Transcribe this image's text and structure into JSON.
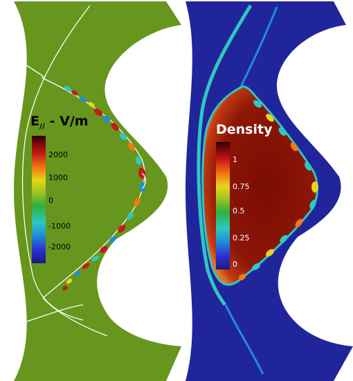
{
  "left_panel": {
    "title_main": "E",
    "title_sub": "//",
    "title_rest": " - V/m",
    "colorbar_ticks": [
      "2000",
      "1000",
      "0",
      "-1000",
      "-2000"
    ],
    "background_color": "#66961e"
  },
  "right_panel": {
    "title": "Density",
    "colorbar_ticks": [
      "1",
      "0.75",
      "0.5",
      "0.25",
      "0"
    ],
    "background_color": "#21259b",
    "core_color": "#8d1606"
  },
  "colormap": [
    "#1a1a80",
    "#2d2dd0",
    "#1f8fd8",
    "#2ec8c0",
    "#2fb040",
    "#9ac21f",
    "#e6d61a",
    "#f07a12",
    "#c81818",
    "#7a0808",
    "#2a0404"
  ]
}
